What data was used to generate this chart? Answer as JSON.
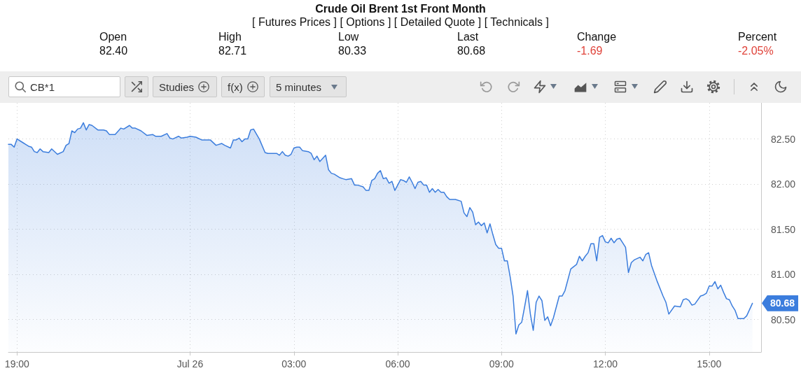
{
  "chart_data": {
    "type": "area",
    "title": "Crude Oil Brent 1st Front Month",
    "subtitle": "[ Futures Prices ] [ Options ] [ Detailed Quote ] [ Technicals ]",
    "annotations": [
      "Open",
      "82.40",
      "High",
      "82.71",
      "Low",
      "80.33",
      "Last",
      "80.68",
      "Change",
      "-1.69",
      "Percent",
      "-2.05%",
      "CB*1",
      "Studies",
      "f(x)",
      "5 minutes",
      {
        "text": "80.68",
        "x": "--07-26T16:15",
        "y": 80.68
      }
    ],
    "color": "#3b7ddd",
    "x": [
      "--07-25T18:45",
      "--07-25T18:50",
      "--07-25T18:55",
      "--07-25T19:00",
      "--07-25T19:10",
      "--07-25T19:15",
      "--07-25T19:20",
      "--07-25T19:25",
      "--07-25T19:30",
      "--07-25T19:35",
      "--07-25T19:40",
      "--07-25T19:45",
      "--07-25T19:55",
      "--07-25T20:00",
      "--07-25T20:10",
      "--07-25T20:20",
      "--07-25T20:25",
      "--07-25T20:30",
      "--07-25T20:35",
      "--07-25T20:40",
      "--07-25T20:45",
      "--07-25T20:50",
      "--07-25T20:55",
      "--07-25T21:00",
      "--07-25T21:05",
      "--07-25T21:10",
      "--07-25T21:20",
      "--07-25T21:30",
      "--07-25T21:35",
      "--07-25T21:40",
      "--07-25T21:45",
      "--07-25T21:50",
      "--07-25T22:00",
      "--07-25T22:05",
      "--07-25T22:15",
      "--07-25T22:20",
      "--07-25T22:25",
      "--07-25T22:35",
      "--07-25T22:45",
      "--07-25T22:55",
      "--07-25T23:00",
      "--07-25T23:10",
      "--07-25T23:20",
      "--07-25T23:25",
      "--07-25T23:30",
      "--07-25T23:40",
      "--07-25T23:45",
      "--07-25T23:55",
      "--07-26T00:00",
      "--07-26T00:10",
      "--07-26T00:20",
      "--07-26T00:35",
      "--07-26T00:45",
      "--07-26T00:55",
      "--07-26T01:00",
      "--07-26T01:10",
      "--07-26T01:15",
      "--07-26T01:20",
      "--07-26T01:25",
      "--07-26T01:30",
      "--07-26T01:35",
      "--07-26T01:40",
      "--07-26T01:45",
      "--07-26T01:50",
      "--07-26T02:00",
      "--07-26T02:10",
      "--07-26T02:15",
      "--07-26T02:20",
      "--07-26T02:30",
      "--07-26T02:35",
      "--07-26T02:40",
      "--07-26T02:45",
      "--07-26T02:50",
      "--07-26T02:55",
      "--07-26T03:00",
      "--07-26T03:05",
      "--07-26T03:10",
      "--07-26T03:15",
      "--07-26T03:25",
      "--07-26T03:30",
      "--07-26T03:35",
      "--07-26T03:40",
      "--07-26T03:45",
      "--07-26T03:55",
      "--07-26T04:00",
      "--07-26T04:05",
      "--07-26T04:10",
      "--07-26T04:20",
      "--07-26T04:25",
      "--07-26T04:30",
      "--07-26T04:40",
      "--07-26T04:45",
      "--07-26T04:50",
      "--07-26T05:00",
      "--07-26T05:05",
      "--07-26T05:10",
      "--07-26T05:15",
      "--07-26T05:20",
      "--07-26T05:25",
      "--07-26T05:30",
      "--07-26T05:35",
      "--07-26T05:40",
      "--07-26T05:45",
      "--07-26T05:50",
      "--07-26T05:55",
      "--07-26T06:00",
      "--07-26T06:05",
      "--07-26T06:10",
      "--07-26T06:15",
      "--07-26T06:20",
      "--07-26T06:25",
      "--07-26T06:30",
      "--07-26T06:35",
      "--07-26T06:40",
      "--07-26T06:45",
      "--07-26T06:50",
      "--07-26T06:55",
      "--07-26T07:00",
      "--07-26T07:05",
      "--07-26T07:10",
      "--07-26T07:15",
      "--07-26T07:20",
      "--07-26T07:25",
      "--07-26T07:30",
      "--07-26T07:40",
      "--07-26T07:50",
      "--07-26T07:55",
      "--07-26T08:00",
      "--07-26T08:05",
      "--07-26T08:10",
      "--07-26T08:15",
      "--07-26T08:20",
      "--07-26T08:25",
      "--07-26T08:30",
      "--07-26T08:35",
      "--07-26T08:40",
      "--07-26T08:45",
      "--07-26T08:50",
      "--07-26T08:55",
      "--07-26T09:00",
      "--07-26T09:05",
      "--07-26T09:10",
      "--07-26T09:15",
      "--07-26T09:20",
      "--07-26T09:25",
      "--07-26T09:30",
      "--07-26T09:35",
      "--07-26T09:40",
      "--07-26T09:45",
      "--07-26T09:50",
      "--07-26T09:55",
      "--07-26T10:00",
      "--07-26T10:05",
      "--07-26T10:10",
      "--07-26T10:15",
      "--07-26T10:20",
      "--07-26T10:25",
      "--07-26T10:30",
      "--07-26T10:40",
      "--07-26T10:45",
      "--07-26T10:50",
      "--07-26T11:00",
      "--07-26T11:10",
      "--07-26T11:15",
      "--07-26T11:20",
      "--07-26T11:25",
      "--07-26T11:30",
      "--07-26T11:35",
      "--07-26T11:40",
      "--07-26T11:45",
      "--07-26T11:50",
      "--07-26T11:55",
      "--07-26T12:00",
      "--07-26T12:05",
      "--07-26T12:10",
      "--07-26T12:15",
      "--07-26T12:20",
      "--07-26T12:25",
      "--07-26T12:30",
      "--07-26T12:35",
      "--07-26T12:40",
      "--07-26T12:45",
      "--07-26T12:50",
      "--07-26T13:00",
      "--07-26T13:05",
      "--07-26T13:10",
      "--07-26T13:15",
      "--07-26T13:20",
      "--07-26T13:30",
      "--07-26T13:40",
      "--07-26T13:45",
      "--07-26T13:50",
      "--07-26T14:00",
      "--07-26T14:10",
      "--07-26T14:15",
      "--07-26T14:20",
      "--07-26T14:25",
      "--07-26T14:30",
      "--07-26T14:35",
      "--07-26T14:45",
      "--07-26T14:50",
      "--07-26T14:55",
      "--07-26T15:00",
      "--07-26T15:05",
      "--07-26T15:10",
      "--07-26T15:15",
      "--07-26T15:20",
      "--07-26T15:25",
      "--07-26T15:30",
      "--07-26T15:35",
      "--07-26T15:40",
      "--07-26T15:45",
      "--07-26T15:50",
      "--07-26T16:00",
      "--07-26T16:05",
      "--07-26T16:15"
    ],
    "values": [
      82.44,
      82.44,
      82.41,
      82.5,
      82.46,
      82.44,
      82.42,
      82.41,
      82.36,
      82.35,
      82.39,
      82.36,
      82.35,
      82.39,
      82.33,
      82.36,
      82.43,
      82.45,
      82.59,
      82.57,
      82.61,
      82.62,
      82.68,
      82.6,
      82.66,
      82.65,
      82.6,
      82.6,
      82.59,
      82.55,
      82.55,
      82.55,
      82.62,
      82.61,
      82.65,
      82.62,
      82.62,
      82.59,
      82.54,
      82.55,
      82.53,
      82.53,
      82.56,
      82.51,
      82.5,
      82.53,
      82.51,
      82.52,
      82.53,
      82.52,
      82.49,
      82.49,
      82.43,
      82.45,
      82.43,
      82.4,
      82.49,
      82.49,
      82.51,
      82.47,
      82.5,
      82.5,
      82.6,
      82.61,
      82.5,
      82.35,
      82.34,
      82.34,
      82.34,
      82.32,
      82.36,
      82.32,
      82.31,
      82.33,
      82.4,
      82.41,
      82.41,
      82.37,
      82.36,
      82.34,
      82.27,
      82.31,
      82.25,
      82.32,
      82.16,
      82.12,
      82.11,
      82.07,
      82.06,
      82.05,
      82.06,
      81.99,
      81.99,
      81.97,
      81.93,
      81.93,
      82.04,
      82.06,
      82.12,
      82.15,
      82.06,
      82.07,
      82.01,
      82.03,
      81.93,
      81.99,
      82.05,
      82.04,
      82.02,
      82.08,
      82.02,
      81.95,
      82.02,
      82.03,
      81.99,
      81.99,
      81.91,
      81.95,
      81.91,
      81.94,
      81.91,
      81.91,
      81.86,
      81.83,
      81.83,
      81.81,
      81.68,
      81.64,
      81.74,
      81.69,
      81.55,
      81.58,
      81.54,
      81.57,
      81.46,
      81.56,
      81.44,
      81.33,
      81.29,
      81.29,
      81.15,
      81.15,
      80.97,
      80.76,
      80.34,
      80.44,
      80.47,
      80.64,
      80.82,
      80.56,
      80.38,
      80.69,
      80.76,
      80.71,
      80.49,
      80.53,
      80.43,
      80.52,
      80.76,
      80.76,
      80.82,
      81.06,
      81.11,
      81.2,
      81.15,
      81.2,
      81.24,
      81.34,
      81.34,
      81.15,
      81.41,
      81.43,
      81.36,
      81.35,
      81.4,
      81.35,
      81.39,
      81.4,
      81.35,
      81.3,
      81.02,
      81.13,
      81.16,
      81.19,
      81.15,
      81.22,
      81.24,
      81.1,
      80.92,
      80.76,
      80.69,
      80.56,
      80.65,
      80.64,
      80.72,
      80.73,
      80.71,
      80.66,
      80.67,
      80.76,
      80.77,
      80.79,
      80.87,
      80.87,
      80.92,
      80.84,
      80.88,
      80.8,
      80.73,
      80.72,
      80.65,
      80.6,
      80.51,
      80.51,
      80.54,
      80.68
    ],
    "xlim": [
      "--07-25T18:45",
      "--07-26T16:30"
    ],
    "xticks": [
      {
        "value": "--07-25T19:00",
        "label": "19:00"
      },
      {
        "value": "--07-26T00:00",
        "label": "Jul 26"
      },
      {
        "value": "--07-26T03:00",
        "label": "03:00"
      },
      {
        "value": "--07-26T06:00",
        "label": "06:00"
      },
      {
        "value": "--07-26T09:00",
        "label": "09:00"
      },
      {
        "value": "--07-26T12:00",
        "label": "12:00"
      },
      {
        "value": "--07-26T15:00",
        "label": "15:00"
      }
    ],
    "ylim": [
      80.14,
      82.9
    ],
    "yticks": [
      {
        "value": 80.5,
        "label": "80.50"
      },
      {
        "value": 81,
        "label": "81.00"
      },
      {
        "value": 81.5,
        "label": "81.50"
      },
      {
        "value": 82,
        "label": "82.00"
      },
      {
        "value": 82.5,
        "label": "82.50"
      }
    ],
    "grid": true
  }
}
